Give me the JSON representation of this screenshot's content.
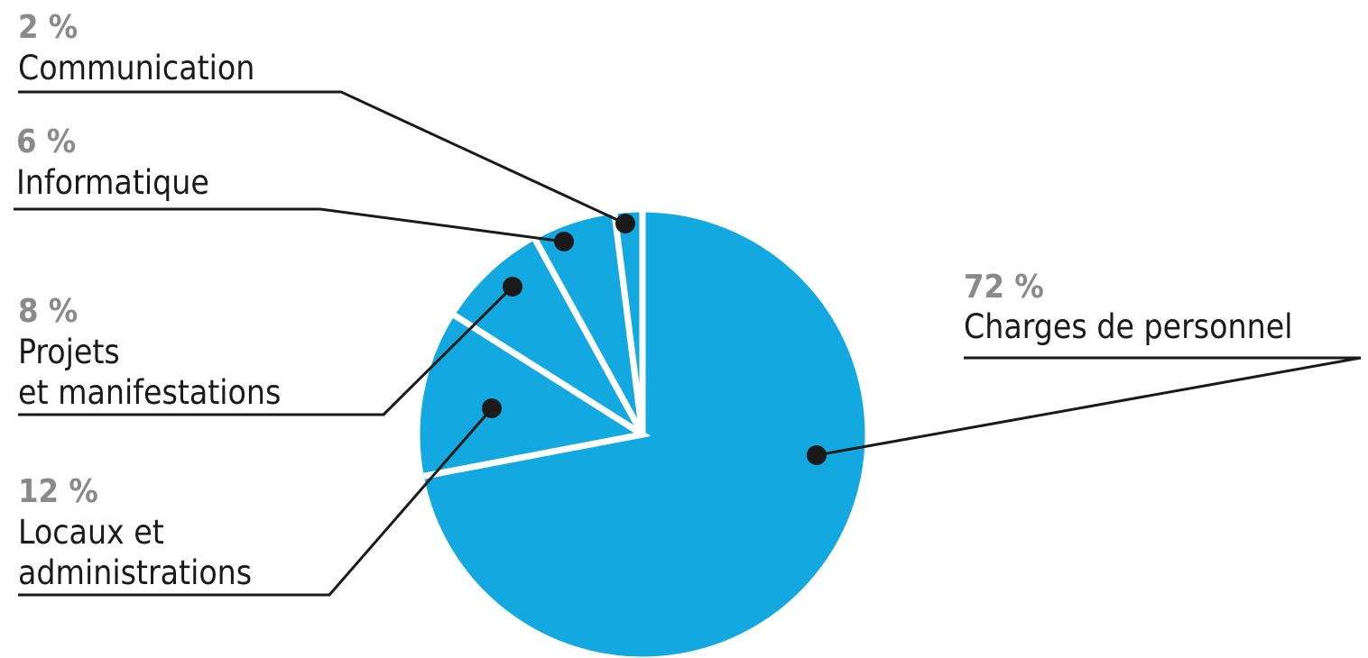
{
  "chart_data": {
    "type": "pie",
    "categories": [
      [
        "Charges de personnel"
      ],
      [
        "Locaux et",
        "administrations"
      ],
      [
        "Projets",
        "et manifestations"
      ],
      [
        "Informatique"
      ],
      [
        "Communication"
      ]
    ],
    "values": [
      72,
      12,
      8,
      6,
      2
    ],
    "value_labels": [
      "72 %",
      "12 %",
      "8 %",
      "6 %",
      "2 %"
    ],
    "color": "#13a8e0"
  }
}
